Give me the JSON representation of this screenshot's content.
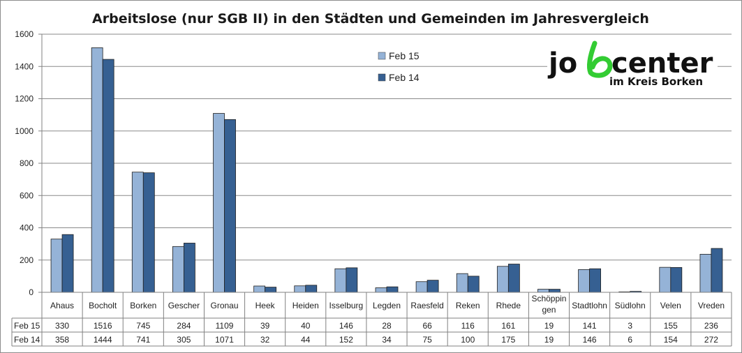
{
  "chart_data": {
    "type": "bar",
    "title": "Arbeitslose (nur SGB II) in den Städten und Gemeinden im Jahresvergleich",
    "xlabel": "",
    "ylabel": "",
    "ylim": [
      0,
      1600
    ],
    "yticks": [
      "0",
      "200",
      "400",
      "600",
      "800",
      "1000",
      "1200",
      "1400",
      "1600"
    ],
    "grid": true,
    "legend_position": "top-center",
    "categories": [
      {
        "line1": "Ahaus",
        "line2": ""
      },
      {
        "line1": "Bocholt",
        "line2": ""
      },
      {
        "line1": "Borken",
        "line2": ""
      },
      {
        "line1": "Gescher",
        "line2": ""
      },
      {
        "line1": "Gronau",
        "line2": ""
      },
      {
        "line1": "Heek",
        "line2": ""
      },
      {
        "line1": "Heiden",
        "line2": ""
      },
      {
        "line1": "Isselburg",
        "line2": ""
      },
      {
        "line1": "Legden",
        "line2": ""
      },
      {
        "line1": "Raesfeld",
        "line2": ""
      },
      {
        "line1": "Reken",
        "line2": ""
      },
      {
        "line1": "Rhede",
        "line2": ""
      },
      {
        "line1": "Schöppin",
        "line2": "gen"
      },
      {
        "line1": "Stadtlohn",
        "line2": ""
      },
      {
        "line1": "Südlohn",
        "line2": ""
      },
      {
        "line1": "Velen",
        "line2": ""
      },
      {
        "line1": "Vreden",
        "line2": ""
      }
    ],
    "series": [
      {
        "name": "Feb 15",
        "color": "#95b3d7",
        "values": [
          330,
          1516,
          745,
          284,
          1109,
          39,
          40,
          146,
          28,
          66,
          116,
          161,
          19,
          141,
          3,
          155,
          236
        ]
      },
      {
        "name": "Feb 14",
        "color": "#366092",
        "values": [
          358,
          1444,
          741,
          305,
          1071,
          32,
          44,
          152,
          34,
          75,
          100,
          175,
          19,
          146,
          6,
          154,
          272
        ]
      }
    ]
  },
  "logo": {
    "main": "jobcenter",
    "sub": "im Kreis Borken",
    "accent_color": "#33cc33",
    "text_color": "#111111"
  }
}
